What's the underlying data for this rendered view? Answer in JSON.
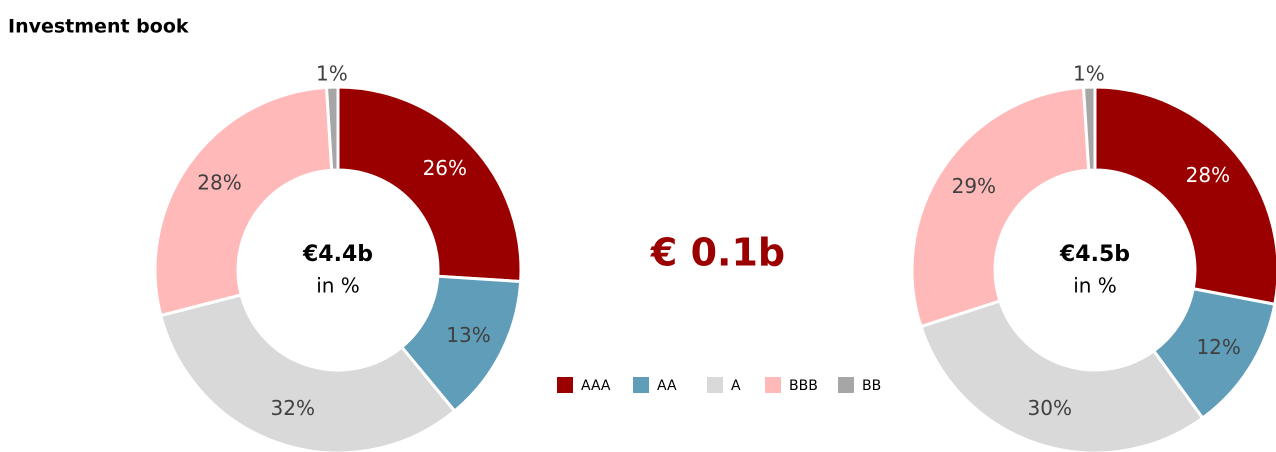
{
  "title": "Investment book",
  "difference": "€ 0.1b",
  "chart_data": [
    {
      "type": "pie",
      "donut": true,
      "center_label": "€4.4b",
      "center_sublabel": "in %",
      "categories": [
        "AAA",
        "AA",
        "A",
        "BBB",
        "BB"
      ],
      "values": [
        26,
        13,
        32,
        28,
        1
      ],
      "value_labels": [
        "26%",
        "13%",
        "32%",
        "28%",
        "1%"
      ],
      "colors": [
        "#9b0000",
        "#5f9db8",
        "#d9d9d9",
        "#ffb9b9",
        "#a6a6a6"
      ]
    },
    {
      "type": "pie",
      "donut": true,
      "center_label": "€4.5b",
      "center_sublabel": "in %",
      "categories": [
        "AAA",
        "AA",
        "A",
        "BBB",
        "BB"
      ],
      "values": [
        28,
        12,
        30,
        29,
        1
      ],
      "value_labels": [
        "28%",
        "12%",
        "30%",
        "29%",
        "1%"
      ],
      "colors": [
        "#9b0000",
        "#5f9db8",
        "#d9d9d9",
        "#ffb9b9",
        "#a6a6a6"
      ]
    }
  ]
}
